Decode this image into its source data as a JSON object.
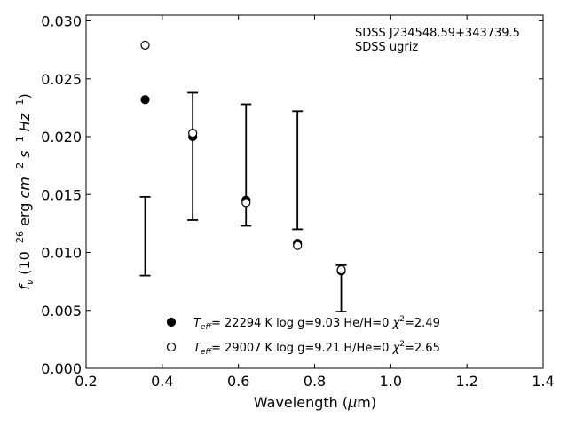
{
  "chart_data": {
    "type": "scatter",
    "xlabel_prefix": "Wavelength (",
    "xlabel_greek": "μ",
    "xlabel_suffix": "m)",
    "ylabel_parts": {
      "f": "f",
      "nu": "ν",
      "mid": " (10",
      "exp1": "−26",
      "mid2": " erg ",
      "cm": "cm",
      "exp2": "−2",
      "s": " s",
      "exp3": "−1",
      "hz": " Hz",
      "exp4": "−1",
      "end": ")"
    },
    "xlim": [
      0.2,
      1.4
    ],
    "ylim": [
      0.0,
      0.0305
    ],
    "xticks": [
      0.2,
      0.4,
      0.6,
      0.8,
      1.0,
      1.2,
      1.4
    ],
    "xtick_labels": [
      "0.2",
      "0.4",
      "0.6",
      "0.8",
      "1.0",
      "1.2",
      "1.4"
    ],
    "yticks": [
      0.0,
      0.005,
      0.01,
      0.015,
      0.02,
      0.025,
      0.03
    ],
    "ytick_labels": [
      "0.000",
      "0.005",
      "0.010",
      "0.015",
      "0.020",
      "0.025",
      "0.030"
    ],
    "annotation": [
      "SDSS J234548.59+343739.5",
      "SDSS ugriz"
    ],
    "observed": {
      "x": [
        0.355,
        0.48,
        0.62,
        0.755,
        0.87
      ],
      "y": [
        0.0114,
        0.0183,
        0.01755,
        0.0171,
        0.0069
      ],
      "yerr": [
        0.0034,
        0.0055,
        0.00525,
        0.0051,
        0.002
      ]
    },
    "series": [
      {
        "name": "T_eff= 22294 K  log g=9.03  He/H=0  χ²=2.49",
        "marker": "filled",
        "x": [
          0.355,
          0.48,
          0.62,
          0.755,
          0.87
        ],
        "y": [
          0.0232,
          0.02,
          0.0145,
          0.0108,
          0.0084
        ]
      },
      {
        "name": "T_eff= 29007 K  log g=9.21  H/He=0  χ²=2.65",
        "marker": "open",
        "x": [
          0.355,
          0.48,
          0.62,
          0.755,
          0.87
        ],
        "y": [
          0.0279,
          0.0203,
          0.0143,
          0.0106,
          0.0085
        ]
      }
    ],
    "legend": [
      {
        "T": "T",
        "eff": "eff",
        "rest": "= 22294 K  log g=9.03  He/H=0  ",
        "chi": "χ",
        "sq": "2",
        "val": "=2.49"
      },
      {
        "T": "T",
        "eff": "eff",
        "rest": "= 29007 K  log g=9.21  H/He=0  ",
        "chi": "χ",
        "sq": "2",
        "val": "=2.65"
      }
    ],
    "legend_position": "lower-center",
    "grid": false
  }
}
